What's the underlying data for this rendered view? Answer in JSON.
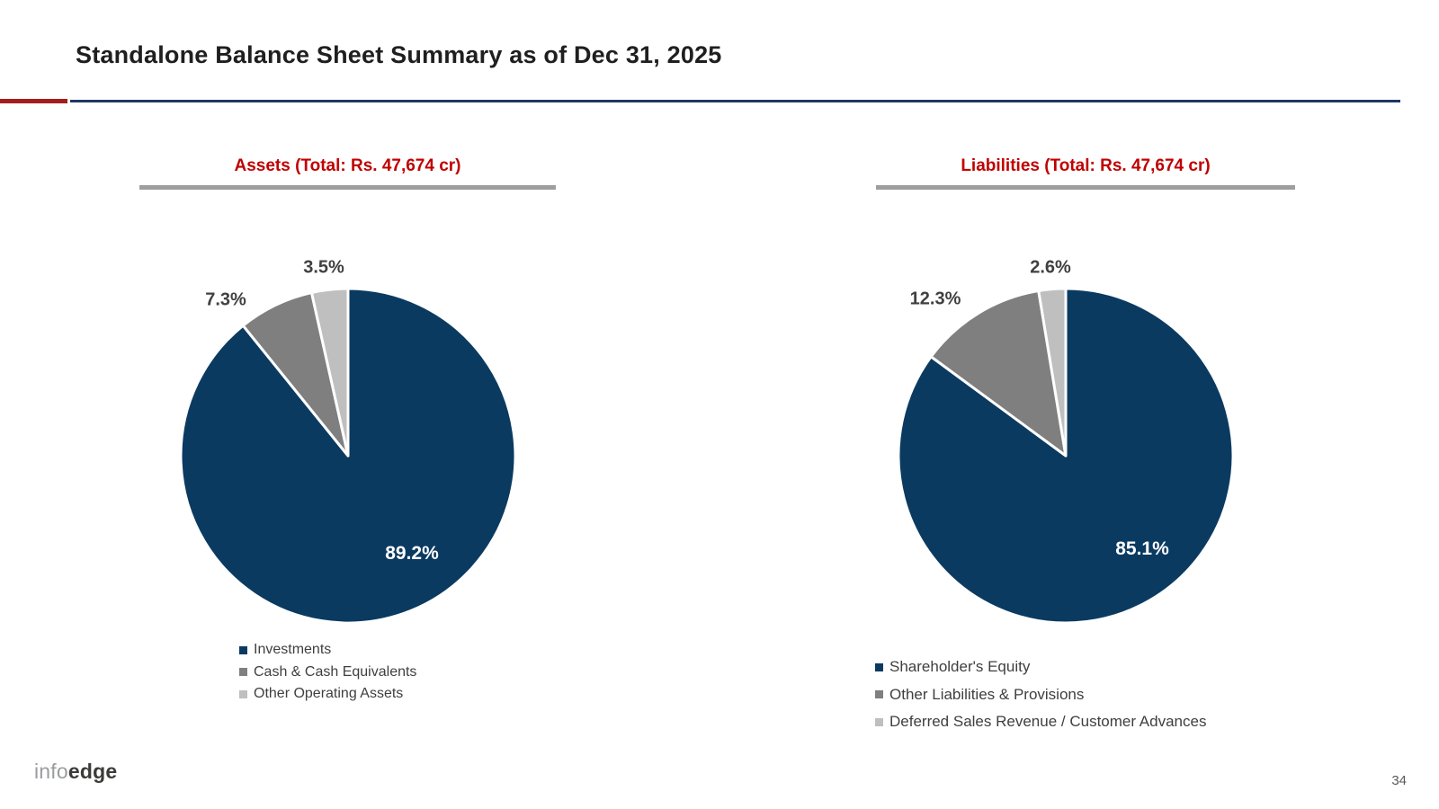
{
  "slide": {
    "title": "Standalone Balance Sheet Summary as of Dec 31, 2025",
    "page_number": "34",
    "logo_light": "info",
    "logo_bold": "edge",
    "colors": {
      "header_red": "#C00000",
      "rule_red": "#A31D1F",
      "rule_navy": "#1F3864",
      "title_bar_gray": "#9E9E9E",
      "pie_navy": "#0B3A61",
      "pie_gray": "#7F7F7F",
      "pie_light_gray": "#BFBFBF"
    }
  },
  "chart_data": [
    {
      "type": "pie",
      "title": "Assets (Total: Rs. 47,674 cr)",
      "total": "Rs. 47,674 cr",
      "start_angle_deg": 0,
      "direction": "clockwise",
      "legend_position": "bottom",
      "slices": [
        {
          "label": "Investments",
          "value": 89.2,
          "display": "89.2%",
          "color": "#0B3A61",
          "label_position": "inside"
        },
        {
          "label": "Cash & Cash Equivalents",
          "value": 7.3,
          "display": "7.3%",
          "color": "#7F7F7F",
          "label_position": "outside"
        },
        {
          "label": "Other Operating Assets",
          "value": 3.5,
          "display": "3.5%",
          "color": "#BFBFBF",
          "label_position": "outside"
        }
      ]
    },
    {
      "type": "pie",
      "title": "Liabilities (Total: Rs. 47,674 cr)",
      "total": "Rs. 47,674 cr",
      "start_angle_deg": 0,
      "direction": "clockwise",
      "legend_position": "bottom",
      "slices": [
        {
          "label": "Shareholder's Equity",
          "value": 85.1,
          "display": "85.1%",
          "color": "#0B3A61",
          "label_position": "inside"
        },
        {
          "label": "Other Liabilities & Provisions",
          "value": 12.3,
          "display": "12.3%",
          "color": "#7F7F7F",
          "label_position": "outside"
        },
        {
          "label": "Deferred Sales Revenue / Customer Advances",
          "value": 2.6,
          "display": "2.6%",
          "color": "#BFBFBF",
          "label_position": "outside"
        }
      ]
    }
  ]
}
